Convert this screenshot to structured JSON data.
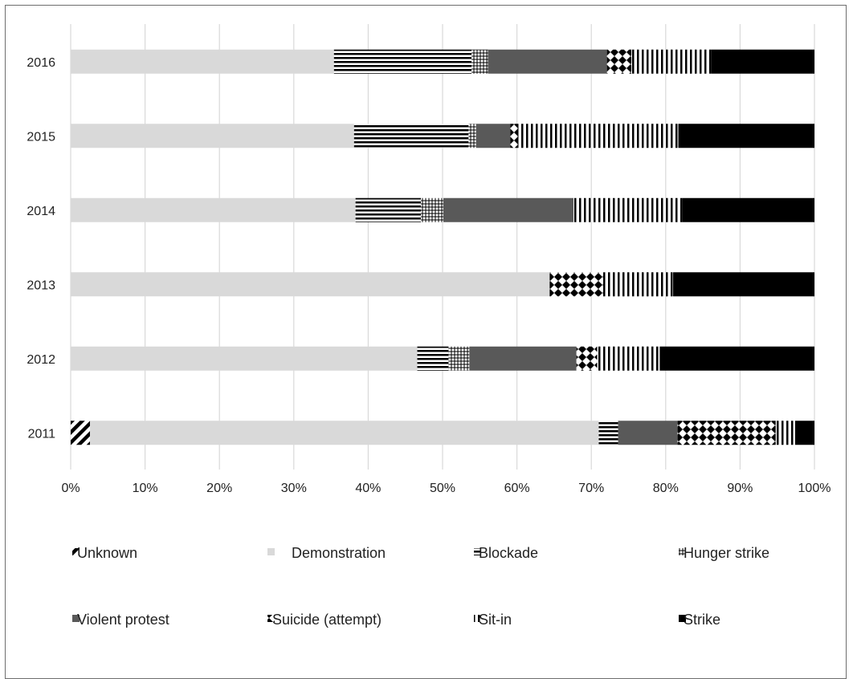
{
  "chart_data": {
    "type": "bar",
    "orientation": "horizontal",
    "stacked": "100%",
    "title": "",
    "xlabel": "",
    "ylabel": "",
    "xlim": [
      0,
      100
    ],
    "x_ticks": [
      "0%",
      "10%",
      "20%",
      "30%",
      "40%",
      "50%",
      "60%",
      "70%",
      "80%",
      "90%",
      "100%"
    ],
    "grid": "vertical",
    "legend_position": "bottom",
    "categories": [
      "2016",
      "2015",
      "2014",
      "2013",
      "2012",
      "2011"
    ],
    "series": [
      {
        "name": "Unknown",
        "pattern": "diagonal-hatch",
        "values": [
          0,
          0,
          0,
          0,
          0,
          2.6
        ]
      },
      {
        "name": "Demonstration",
        "pattern": "solid-light",
        "values": [
          35.4,
          38.1,
          38.3,
          64.4,
          46.6,
          68.4
        ]
      },
      {
        "name": "Blockade",
        "pattern": "horizontal-lines",
        "values": [
          18.5,
          15.4,
          8.8,
          0,
          4.2,
          2.6
        ]
      },
      {
        "name": "Hunger strike",
        "pattern": "small-grid",
        "values": [
          2.2,
          1.0,
          3.0,
          0,
          2.8,
          0
        ]
      },
      {
        "name": "Violent protest",
        "pattern": "solid-dark",
        "values": [
          16.0,
          4.6,
          17.5,
          0,
          14.4,
          8.0
        ]
      },
      {
        "name": "Suicide (attempt)",
        "pattern": "diamonds",
        "values": [
          3.3,
          1.0,
          0,
          7.2,
          2.8,
          13.2
        ]
      },
      {
        "name": "Sit-in",
        "pattern": "vertical-lines",
        "values": [
          10.7,
          21.6,
          14.6,
          9.4,
          8.4,
          2.6
        ]
      },
      {
        "name": "Strike",
        "pattern": "solid-black",
        "values": [
          13.9,
          18.3,
          17.8,
          19.0,
          20.8,
          2.6
        ]
      }
    ],
    "colors": {
      "background": "#ffffff",
      "gridline": "#d9d9d9",
      "light_fill": "#d9d9d9",
      "dark_fill": "#595959",
      "black_fill": "#000000",
      "frame": "#6e6e6e"
    }
  }
}
